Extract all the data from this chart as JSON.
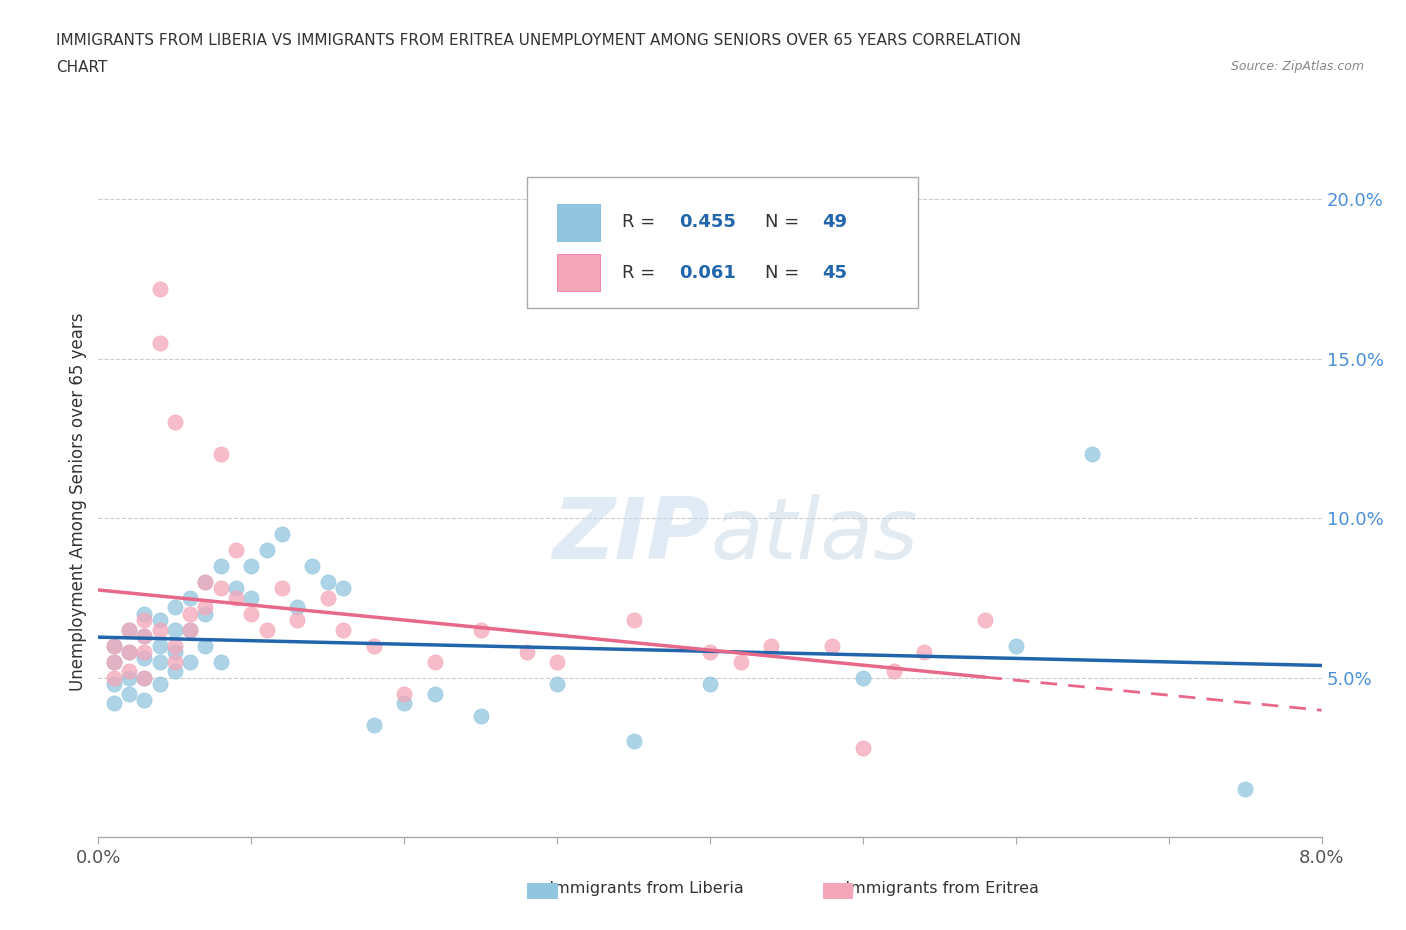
{
  "title_line1": "IMMIGRANTS FROM LIBERIA VS IMMIGRANTS FROM ERITREA UNEMPLOYMENT AMONG SENIORS OVER 65 YEARS CORRELATION",
  "title_line2": "CHART",
  "source": "Source: ZipAtlas.com",
  "ylabel": "Unemployment Among Seniors over 65 years",
  "xlim": [
    0.0,
    0.08
  ],
  "ylim": [
    0.0,
    0.21
  ],
  "xticks": [
    0.0,
    0.01,
    0.02,
    0.03,
    0.04,
    0.05,
    0.06,
    0.07,
    0.08
  ],
  "xtick_labels": [
    "0.0%",
    "",
    "",
    "",
    "",
    "",
    "",
    "",
    "8.0%"
  ],
  "ytick_positions": [
    0.05,
    0.1,
    0.15,
    0.2
  ],
  "ytick_labels": [
    "5.0%",
    "10.0%",
    "15.0%",
    "20.0%"
  ],
  "liberia_color": "#92c5de",
  "eritrea_color": "#f4a6b8",
  "liberia_R": 0.455,
  "liberia_N": 49,
  "eritrea_R": 0.061,
  "eritrea_N": 45,
  "liberia_line_color": "#2166ac",
  "eritrea_line_color": "#d6604d",
  "watermark_color": "#c8d8e8",
  "background_color": "#ffffff",
  "liberia_x": [
    0.001,
    0.001,
    0.001,
    0.001,
    0.002,
    0.002,
    0.002,
    0.002,
    0.003,
    0.003,
    0.003,
    0.003,
    0.003,
    0.004,
    0.004,
    0.004,
    0.004,
    0.005,
    0.005,
    0.005,
    0.005,
    0.006,
    0.006,
    0.006,
    0.007,
    0.007,
    0.007,
    0.008,
    0.008,
    0.009,
    0.01,
    0.01,
    0.011,
    0.012,
    0.013,
    0.014,
    0.015,
    0.016,
    0.018,
    0.02,
    0.022,
    0.025,
    0.03,
    0.035,
    0.04,
    0.05,
    0.06,
    0.065,
    0.075
  ],
  "liberia_y": [
    0.06,
    0.055,
    0.048,
    0.042,
    0.065,
    0.058,
    0.05,
    0.045,
    0.07,
    0.063,
    0.056,
    0.05,
    0.043,
    0.068,
    0.06,
    0.055,
    0.048,
    0.072,
    0.065,
    0.058,
    0.052,
    0.075,
    0.065,
    0.055,
    0.08,
    0.07,
    0.06,
    0.085,
    0.055,
    0.078,
    0.085,
    0.075,
    0.09,
    0.095,
    0.072,
    0.085,
    0.08,
    0.078,
    0.035,
    0.042,
    0.045,
    0.038,
    0.048,
    0.03,
    0.048,
    0.05,
    0.06,
    0.12,
    0.015
  ],
  "eritrea_x": [
    0.001,
    0.001,
    0.001,
    0.002,
    0.002,
    0.002,
    0.003,
    0.003,
    0.003,
    0.003,
    0.004,
    0.004,
    0.004,
    0.005,
    0.005,
    0.005,
    0.006,
    0.006,
    0.007,
    0.007,
    0.008,
    0.008,
    0.009,
    0.009,
    0.01,
    0.011,
    0.012,
    0.013,
    0.015,
    0.016,
    0.018,
    0.02,
    0.022,
    0.025,
    0.028,
    0.03,
    0.035,
    0.04,
    0.042,
    0.044,
    0.048,
    0.05,
    0.052,
    0.054,
    0.058
  ],
  "eritrea_y": [
    0.06,
    0.055,
    0.05,
    0.065,
    0.058,
    0.052,
    0.068,
    0.063,
    0.058,
    0.05,
    0.172,
    0.155,
    0.065,
    0.06,
    0.055,
    0.13,
    0.07,
    0.065,
    0.08,
    0.072,
    0.12,
    0.078,
    0.09,
    0.075,
    0.07,
    0.065,
    0.078,
    0.068,
    0.075,
    0.065,
    0.06,
    0.045,
    0.055,
    0.065,
    0.058,
    0.055,
    0.068,
    0.058,
    0.055,
    0.06,
    0.06,
    0.028,
    0.052,
    0.058,
    0.068
  ]
}
